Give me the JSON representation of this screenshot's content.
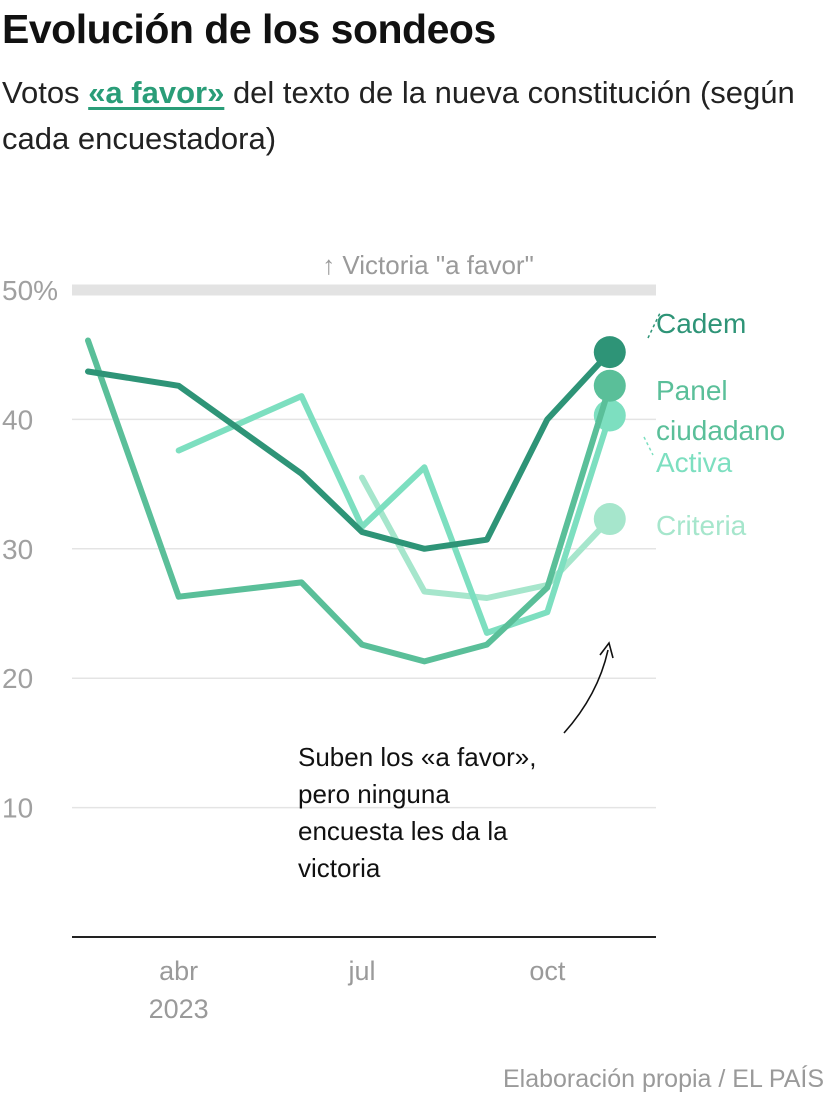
{
  "header": {
    "title": "Evolución de los sondeos",
    "subtitle_pre": "Votos ",
    "subtitle_highlight": "«a favor»",
    "subtitle_post": " del texto de la nueva constitución (según cada encuestadora)"
  },
  "source": "Elaboración propia / EL PAÍS",
  "chart_data": {
    "type": "line",
    "ylim": [
      0,
      50
    ],
    "yticks": [
      {
        "value": 50,
        "label": "50%"
      },
      {
        "value": 40,
        "label": "40"
      },
      {
        "value": 30,
        "label": "30"
      },
      {
        "value": 20,
        "label": "20"
      },
      {
        "value": 10,
        "label": "10"
      }
    ],
    "xlim": [
      "2023-03-01",
      "2023-11-30"
    ],
    "xticks": [
      {
        "date": "2023-04-15",
        "label": "abr",
        "sublabel": "2023"
      },
      {
        "date": "2023-07-15",
        "label": "jul",
        "sublabel": ""
      },
      {
        "date": "2023-10-15",
        "label": "oct",
        "sublabel": ""
      }
    ],
    "reference": {
      "value": 50,
      "label": "↑ Victoria \"a favor\""
    },
    "annotation": {
      "lines": [
        "Suben los «a favor»,",
        "pero ninguna",
        "encuesta les da la",
        "victoria"
      ]
    },
    "grid": true,
    "series": [
      {
        "name": "Criteria",
        "color": "#a6e6cc",
        "label_lines": [
          "Criteria"
        ],
        "points": [
          [
            "2023-07-15",
            35.5
          ],
          [
            "2023-08-15",
            26.7
          ],
          [
            "2023-09-15",
            26.2
          ],
          [
            "2023-10-15",
            27.2
          ],
          [
            "2023-11-15",
            32.3
          ]
        ]
      },
      {
        "name": "Activa",
        "color": "#7ddfc0",
        "label_lines": [
          "Activa"
        ],
        "points": [
          [
            "2023-04-15",
            37.6
          ],
          [
            "2023-06-15",
            41.8
          ],
          [
            "2023-07-15",
            31.7
          ],
          [
            "2023-08-15",
            36.3
          ],
          [
            "2023-09-15",
            23.5
          ],
          [
            "2023-10-15",
            25.1
          ],
          [
            "2023-11-15",
            40.3
          ]
        ]
      },
      {
        "name": "Panel ciudadano",
        "color": "#5abf99",
        "label_lines": [
          "Panel",
          "ciudadano"
        ],
        "points": [
          [
            "2023-03-01",
            46.1
          ],
          [
            "2023-04-15",
            26.3
          ],
          [
            "2023-06-15",
            27.4
          ],
          [
            "2023-07-15",
            22.6
          ],
          [
            "2023-08-15",
            21.3
          ],
          [
            "2023-09-15",
            22.6
          ],
          [
            "2023-10-15",
            27.0
          ],
          [
            "2023-11-15",
            42.6
          ]
        ]
      },
      {
        "name": "Cadem",
        "color": "#2e9477",
        "label_lines": [
          "Cadem"
        ],
        "points": [
          [
            "2023-03-01",
            43.7
          ],
          [
            "2023-04-15",
            42.6
          ],
          [
            "2023-06-15",
            35.8
          ],
          [
            "2023-07-15",
            31.3
          ],
          [
            "2023-08-15",
            30.0
          ],
          [
            "2023-09-15",
            30.7
          ],
          [
            "2023-10-15",
            40.0
          ],
          [
            "2023-11-15",
            45.2
          ]
        ]
      }
    ]
  }
}
